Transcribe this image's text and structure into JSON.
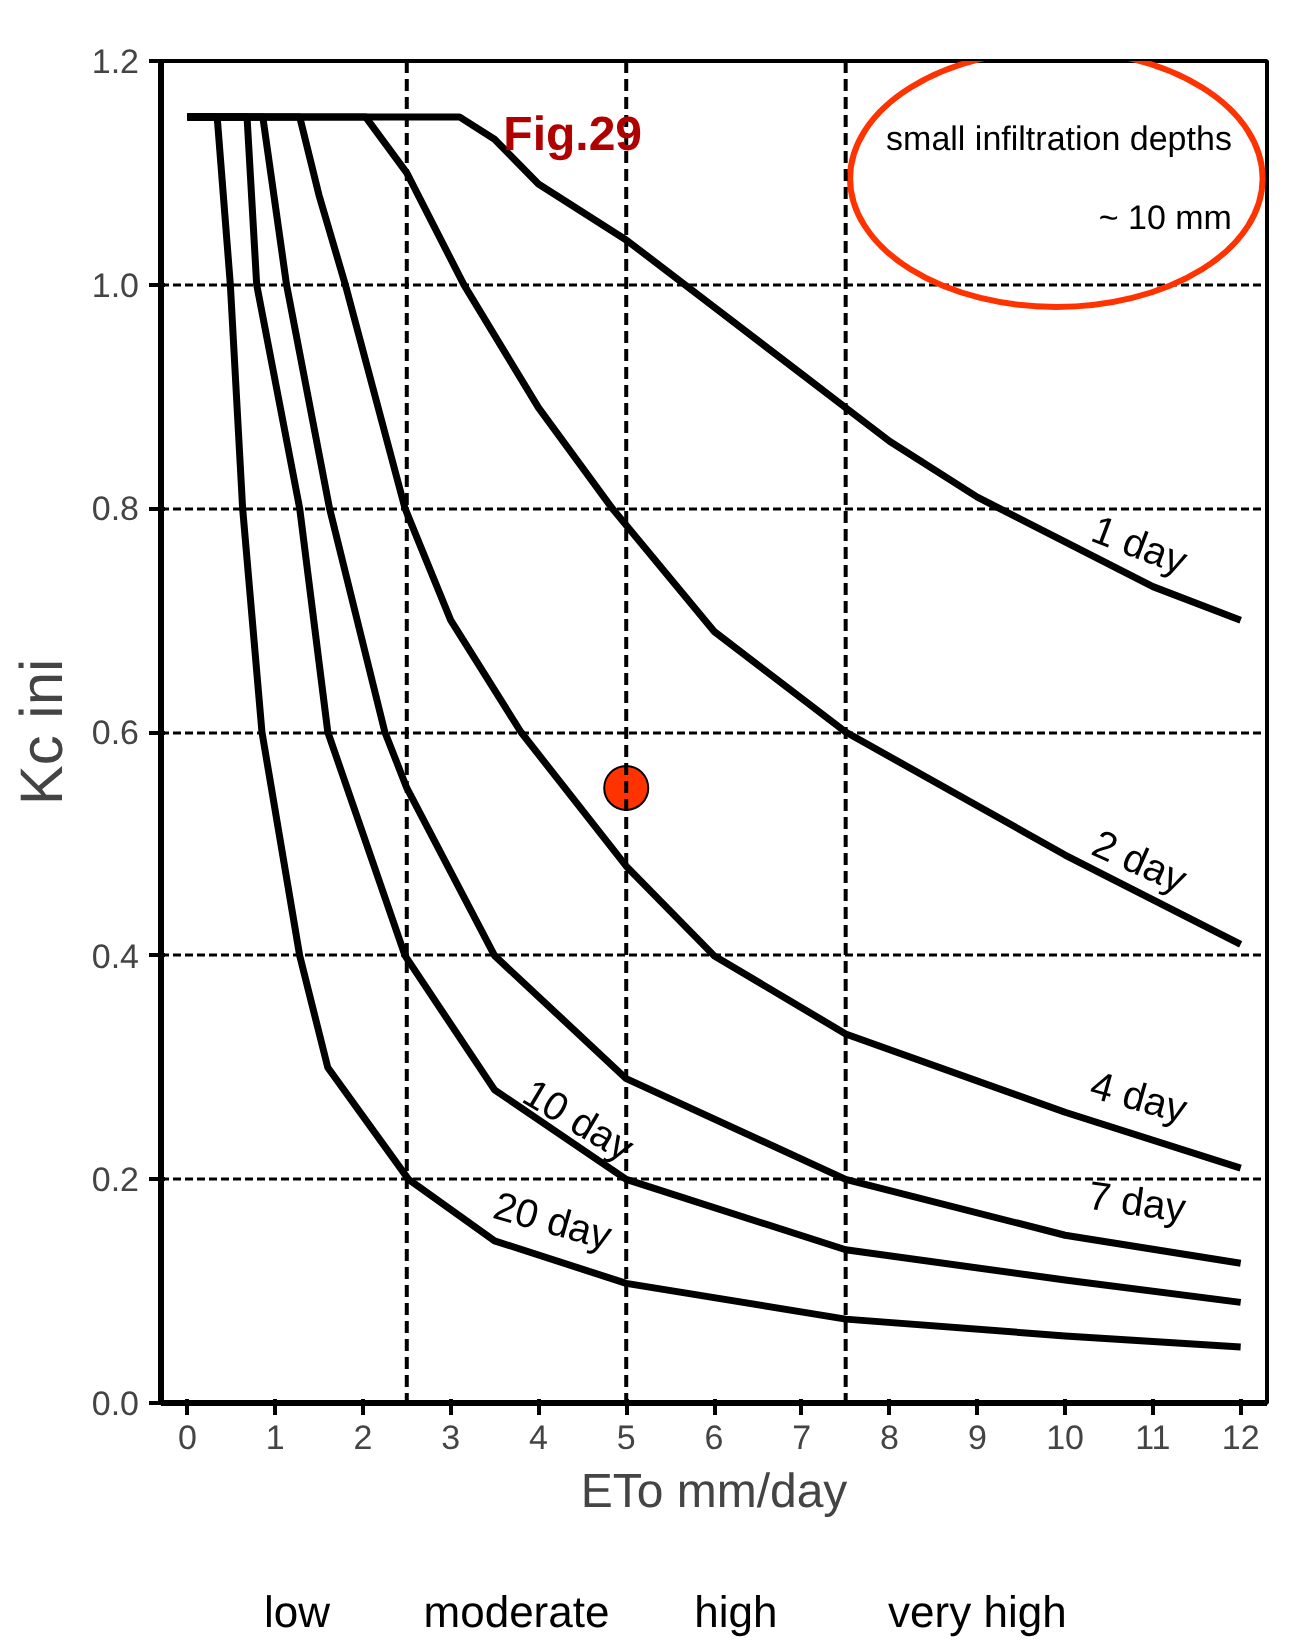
{
  "chart_data": {
    "type": "line",
    "title": "Fig.29",
    "xlabel": "ETo mm/day",
    "ylabel": "Kc ini",
    "xlim": [
      -0.3,
      12.3
    ],
    "ylim": [
      0,
      1.2
    ],
    "xticks": [
      0,
      1,
      2,
      3,
      4,
      5,
      6,
      7,
      8,
      9,
      10,
      11,
      12
    ],
    "yticks": [
      {
        "value": 0,
        "label": "0.0"
      },
      0.2,
      0.4,
      0.6,
      0.8,
      {
        "value": 1,
        "label": "1.0"
      },
      {
        "value": 1.2,
        "label": "1.2"
      }
    ],
    "grid": "y",
    "marker": "none",
    "line_style": "solid",
    "series": [
      {
        "name": "1 day",
        "color": "#000000",
        "x": [
          0,
          3.1,
          3.5,
          4,
          5,
          6,
          7,
          7.5,
          8,
          9,
          10,
          11,
          12
        ],
        "values": [
          1.15,
          1.15,
          1.13,
          1.09,
          1.04,
          0.98,
          0.92,
          0.89,
          0.86,
          0.81,
          0.77,
          0.73,
          0.7
        ]
      },
      {
        "name": "2 day",
        "color": "#000000",
        "x": [
          0,
          2.03,
          2.5,
          3.15,
          4,
          4.84,
          6,
          7.5,
          10,
          12
        ],
        "values": [
          1.15,
          1.15,
          1.1,
          1.0,
          0.89,
          0.8,
          0.69,
          0.6,
          0.49,
          0.41
        ]
      },
      {
        "name": "4 day",
        "color": "#000000",
        "x": [
          0,
          1.28,
          1.5,
          1.8,
          2.48,
          3,
          3.8,
          5,
          6,
          7.5,
          10,
          12
        ],
        "values": [
          1.15,
          1.15,
          1.08,
          1.0,
          0.8,
          0.7,
          0.6,
          0.48,
          0.4,
          0.33,
          0.26,
          0.21
        ]
      },
      {
        "name": "7 day",
        "color": "#000000",
        "x": [
          0,
          0.86,
          1.13,
          1.62,
          2.25,
          2.5,
          3.5,
          5,
          7.5,
          10,
          12
        ],
        "values": [
          1.15,
          1.15,
          1.0,
          0.8,
          0.6,
          0.55,
          0.4,
          0.29,
          0.2,
          0.15,
          0.125
        ]
      },
      {
        "name": "10 day",
        "color": "#000000",
        "x": [
          0,
          0.68,
          0.79,
          1.28,
          1.6,
          2.48,
          3.5,
          5,
          7.5,
          10,
          12
        ],
        "values": [
          1.15,
          1.15,
          1.0,
          0.8,
          0.6,
          0.4,
          0.28,
          0.2,
          0.137,
          0.11,
          0.09
        ]
      },
      {
        "name": "20 day",
        "color": "#000000",
        "x": [
          0,
          0.34,
          0.49,
          0.63,
          0.85,
          1.28,
          1.6,
          2.52,
          3.5,
          5,
          7.5,
          10,
          12
        ],
        "values": [
          1.15,
          1.15,
          1.0,
          0.8,
          0.6,
          0.4,
          0.3,
          0.2,
          0.145,
          0.107,
          0.075,
          0.06,
          0.05
        ]
      },
      {
        "type": "scatter",
        "marker": "circle",
        "color": "#ff3300",
        "x": [
          5
        ],
        "values": [
          0.55
        ]
      }
    ],
    "ref_lines": [
      {
        "axis": "x",
        "value": 2.5,
        "line_style": "dashed",
        "color": "#000000"
      },
      {
        "axis": "x",
        "value": 5,
        "line_style": "dashed",
        "color": "#000000"
      },
      {
        "axis": "x",
        "value": 7.5,
        "line_style": "dashed",
        "color": "#000000"
      }
    ],
    "annotations": [
      "small infiltration depths",
      "~ 10 mm",
      "low",
      "moderate",
      "high",
      "very high"
    ]
  }
}
